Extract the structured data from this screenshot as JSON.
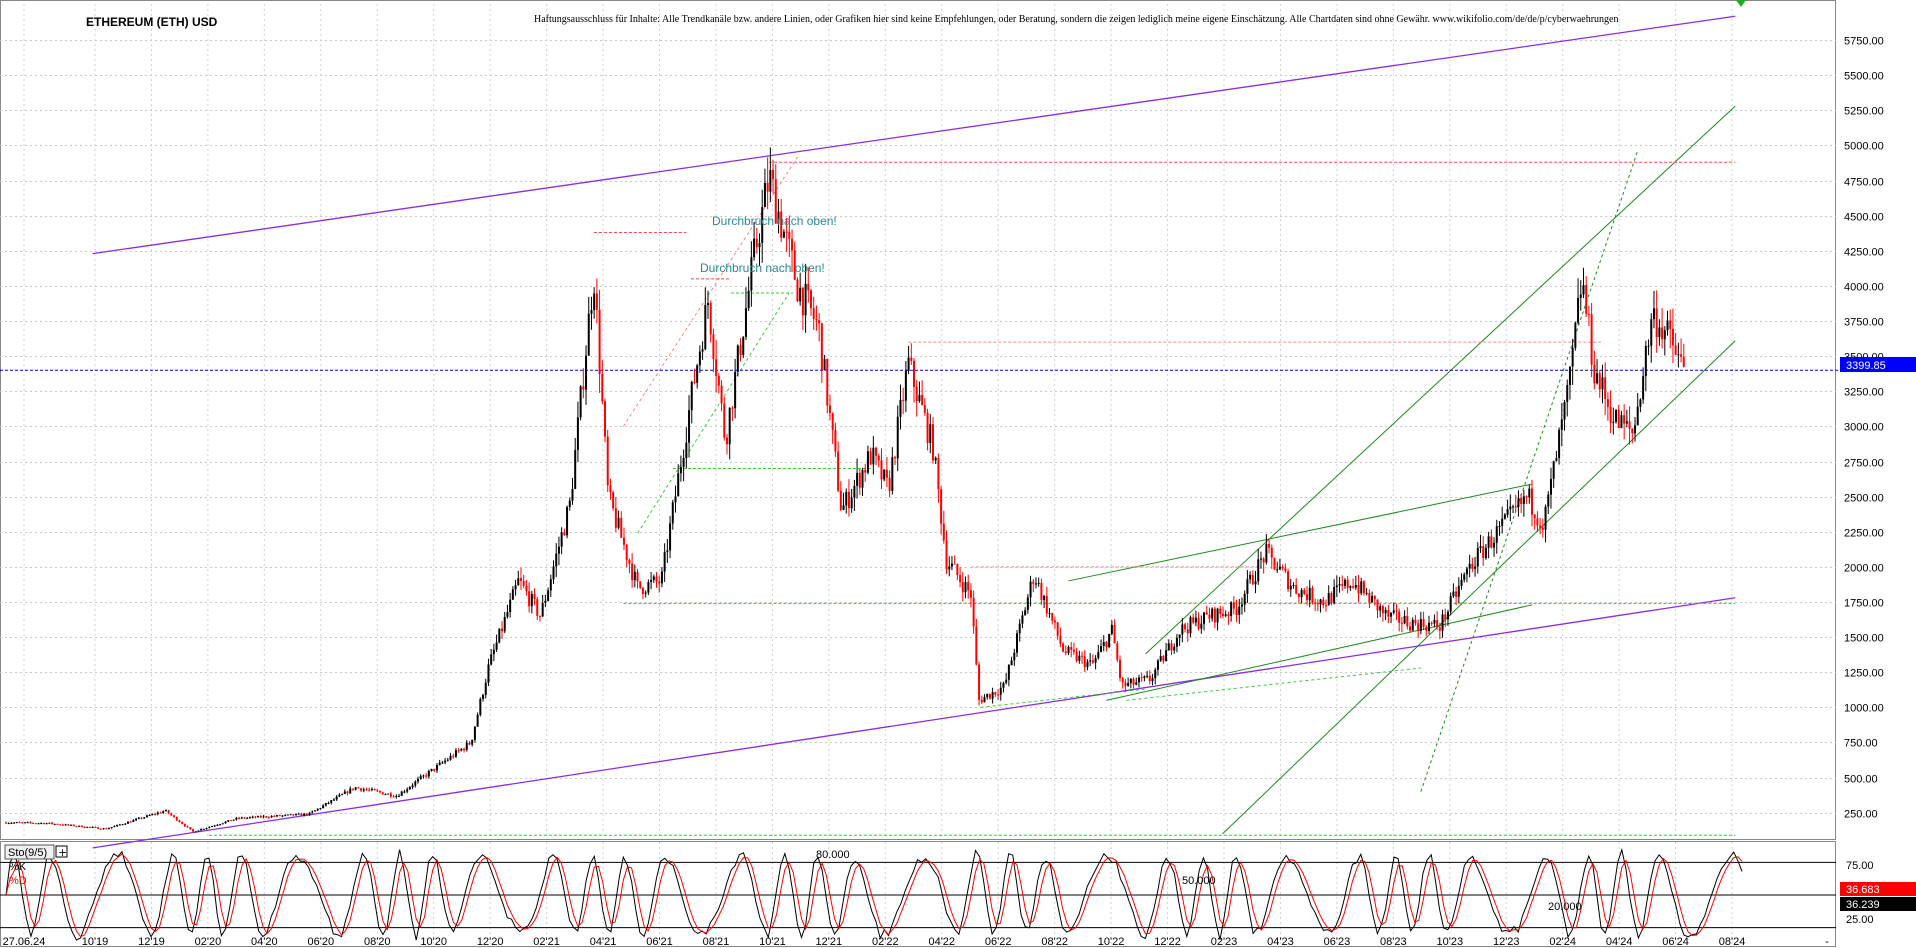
{
  "title": "ETHEREUM (ETH) USD",
  "disclaimer": "Haftungsausschluss für Inhalte: Alle Trendkanäle bzw. andere Linien, oder Grafiken hier sind keine Empfehlungen, oder Beratung, sondern die zeigen lediglich meine eigene Einschätzung. Alle Chartdaten sind ohne Gewähr.  www.wikifolio.com/de/de/p/cyberwaehrungen",
  "colors": {
    "up": "#000000",
    "down": "#ff0000",
    "channel": "#8b2be2",
    "trend": "#1a8a1a",
    "guide": "#33cc33",
    "price_line": "#0000cc",
    "price_badge": "#0000ff",
    "k_badge": "#ff0000",
    "d_badge": "#000000"
  },
  "annotations": [
    "Durchbruch nach oben!",
    "Durchbruch nach oben!"
  ],
  "price_badge": "3399.85",
  "stoch": {
    "label": "Sto(9/5)",
    "k_label": "%K",
    "d_label": "%D",
    "k_value": "36.683",
    "d_value": "36.239",
    "level_labels": [
      "80.000",
      "50.000",
      "20.000"
    ],
    "y_ticks": [
      "75.00",
      "50.00",
      "25.00"
    ]
  },
  "chart_data": {
    "type": "candlestick",
    "title": "ETHEREUM (ETH) USD",
    "xlabel": "",
    "ylabel": "",
    "ylim": [
      70,
      5950
    ],
    "y_ticks": [
      250,
      500,
      750,
      1000,
      1250,
      1500,
      1750,
      2000,
      2250,
      2500,
      2750,
      3000,
      3250,
      3500,
      3750,
      4000,
      4250,
      4500,
      4750,
      5000,
      5250,
      5500,
      5750
    ],
    "x_tick_labels": [
      "27.06.24",
      "10'19",
      "12'19",
      "02'20",
      "04'20",
      "06'20",
      "08'20",
      "10'20",
      "12'20",
      "02'21",
      "04'21",
      "06'21",
      "08'21",
      "10'21",
      "12'21",
      "02'22",
      "04'22",
      "06'22",
      "08'22",
      "10'22",
      "12'22",
      "02'23",
      "04'23",
      "06'23",
      "08'23",
      "10'23",
      "12'23",
      "02'24",
      "04'24",
      "06'24",
      "08'24"
    ],
    "grid": true,
    "last_price": 3399.85,
    "close_path": [
      {
        "date": "2019-09-01",
        "close": 180
      },
      {
        "date": "2019-10-15",
        "close": 175
      },
      {
        "date": "2019-12-15",
        "close": 135
      },
      {
        "date": "2020-02-15",
        "close": 265
      },
      {
        "date": "2020-03-15",
        "close": 115
      },
      {
        "date": "2020-05-01",
        "close": 210
      },
      {
        "date": "2020-07-15",
        "close": 240
      },
      {
        "date": "2020-09-01",
        "close": 430
      },
      {
        "date": "2020-10-15",
        "close": 370
      },
      {
        "date": "2020-12-01",
        "close": 600
      },
      {
        "date": "2021-01-01",
        "close": 750
      },
      {
        "date": "2021-01-20",
        "close": 1300
      },
      {
        "date": "2021-02-20",
        "close": 1900
      },
      {
        "date": "2021-03-15",
        "close": 1650
      },
      {
        "date": "2021-04-15",
        "close": 2450
      },
      {
        "date": "2021-05-10",
        "close": 4100
      },
      {
        "date": "2021-05-25",
        "close": 2500
      },
      {
        "date": "2021-06-25",
        "close": 1850
      },
      {
        "date": "2021-07-20",
        "close": 1900
      },
      {
        "date": "2021-08-25",
        "close": 3400
      },
      {
        "date": "2021-09-07",
        "close": 3900
      },
      {
        "date": "2021-09-25",
        "close": 2900
      },
      {
        "date": "2021-10-25",
        "close": 4200
      },
      {
        "date": "2021-11-10",
        "close": 4780
      },
      {
        "date": "2021-12-10",
        "close": 4000
      },
      {
        "date": "2022-01-01",
        "close": 3700
      },
      {
        "date": "2022-01-25",
        "close": 2400
      },
      {
        "date": "2022-02-25",
        "close": 2800
      },
      {
        "date": "2022-03-15",
        "close": 2550
      },
      {
        "date": "2022-04-05",
        "close": 3450
      },
      {
        "date": "2022-05-01",
        "close": 2850
      },
      {
        "date": "2022-05-15",
        "close": 2050
      },
      {
        "date": "2022-06-10",
        "close": 1800
      },
      {
        "date": "2022-06-18",
        "close": 1050
      },
      {
        "date": "2022-07-15",
        "close": 1150
      },
      {
        "date": "2022-08-15",
        "close": 1950
      },
      {
        "date": "2022-09-15",
        "close": 1400
      },
      {
        "date": "2022-10-15",
        "close": 1300
      },
      {
        "date": "2022-11-05",
        "close": 1550
      },
      {
        "date": "2022-11-15",
        "close": 1150
      },
      {
        "date": "2022-12-15",
        "close": 1200
      },
      {
        "date": "2023-01-15",
        "close": 1550
      },
      {
        "date": "2023-02-15",
        "close": 1650
      },
      {
        "date": "2023-03-15",
        "close": 1700
      },
      {
        "date": "2023-04-15",
        "close": 2100
      },
      {
        "date": "2023-05-15",
        "close": 1850
      },
      {
        "date": "2023-06-15",
        "close": 1750
      },
      {
        "date": "2023-07-15",
        "close": 1900
      },
      {
        "date": "2023-08-20",
        "close": 1650
      },
      {
        "date": "2023-09-15",
        "close": 1600
      },
      {
        "date": "2023-10-15",
        "close": 1580
      },
      {
        "date": "2023-11-15",
        "close": 2000
      },
      {
        "date": "2023-12-15",
        "close": 2250
      },
      {
        "date": "2024-01-15",
        "close": 2500
      },
      {
        "date": "2024-02-01",
        "close": 2300
      },
      {
        "date": "2024-02-28",
        "close": 3300
      },
      {
        "date": "2024-03-12",
        "close": 4050
      },
      {
        "date": "2024-03-25",
        "close": 3400
      },
      {
        "date": "2024-04-15",
        "close": 3050
      },
      {
        "date": "2024-05-05",
        "close": 2950
      },
      {
        "date": "2024-05-25",
        "close": 3800
      },
      {
        "date": "2024-06-10",
        "close": 3650
      },
      {
        "date": "2024-06-27",
        "close": 3400
      }
    ],
    "stochastic_levels": [
      20,
      50,
      80
    ]
  }
}
